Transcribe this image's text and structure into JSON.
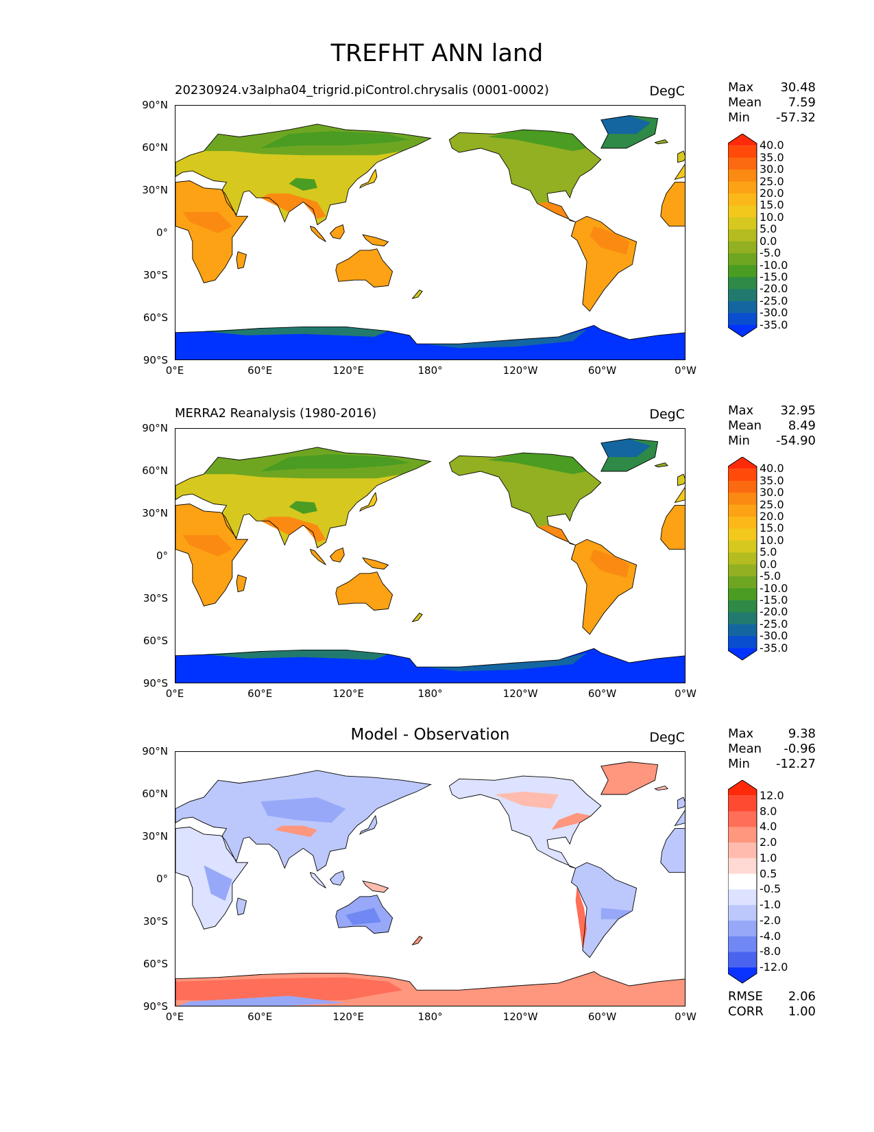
{
  "title": "TREFHT ANN land",
  "panels": [
    {
      "id": "test",
      "title": "20230924.v3alpha04_trigrid.piControl.chrysalis (0001-0002)",
      "units": "DegC",
      "stats": [
        [
          "Max",
          "30.48"
        ],
        [
          "Mean",
          "7.59"
        ],
        [
          "Min",
          "-57.32"
        ]
      ],
      "colorbar": "abs"
    },
    {
      "id": "ref",
      "title": "MERRA2 Reanalysis (1980-2016)",
      "units": "DegC",
      "stats": [
        [
          "Max",
          "32.95"
        ],
        [
          "Mean",
          "8.49"
        ],
        [
          "Min",
          "-54.90"
        ]
      ],
      "colorbar": "abs"
    },
    {
      "id": "diff",
      "title": "Model - Observation",
      "units": "DegC",
      "stats": [
        [
          "Max",
          "9.38"
        ],
        [
          "Mean",
          "-0.96"
        ],
        [
          "Min",
          "-12.27"
        ]
      ],
      "colorbar": "diff",
      "error_stats": [
        [
          "RMSE",
          "2.06"
        ],
        [
          "CORR",
          "1.00"
        ]
      ]
    }
  ],
  "axes": {
    "lat_ticks": [
      "90°N",
      "60°N",
      "30°N",
      "0°",
      "30°S",
      "60°S",
      "90°S"
    ],
    "lon_ticks": [
      "0°E",
      "60°E",
      "120°E",
      "180°",
      "120°W",
      "60°W",
      "0°W"
    ]
  },
  "colorbars": {
    "abs": {
      "labels": [
        "40.0",
        "35.0",
        "30.0",
        "25.0",
        "20.0",
        "15.0",
        "10.0",
        "5.0",
        "0.0",
        "-5.0",
        "-10.0",
        "-15.0",
        "-20.0",
        "-25.0",
        "-30.0",
        "-35.0"
      ],
      "colors": [
        "#ff2a0a",
        "#ff4a0a",
        "#fb6a10",
        "#fb8a12",
        "#fca214",
        "#fcb818",
        "#f2c81c",
        "#d6c81e",
        "#b4bc20",
        "#92b022",
        "#6ea622",
        "#4a9c22",
        "#2e8a46",
        "#227a6e",
        "#1466a0",
        "#0a4ed0",
        "#0033ff"
      ]
    },
    "diff": {
      "labels": [
        "12.0",
        "8.0",
        "4.0",
        "2.0",
        "1.0",
        "0.5",
        "-0.5",
        "-1.0",
        "-2.0",
        "-4.0",
        "-8.0",
        "-12.0"
      ],
      "colors": [
        "#ff2a0a",
        "#ff4a32",
        "#ff6e58",
        "#ff967e",
        "#ffbcae",
        "#ffdad4",
        "#ffffff",
        "#dce2ff",
        "#bcc8fc",
        "#98a8f8",
        "#7088f4",
        "#4a64f0",
        "#0a33ff"
      ]
    }
  }
}
